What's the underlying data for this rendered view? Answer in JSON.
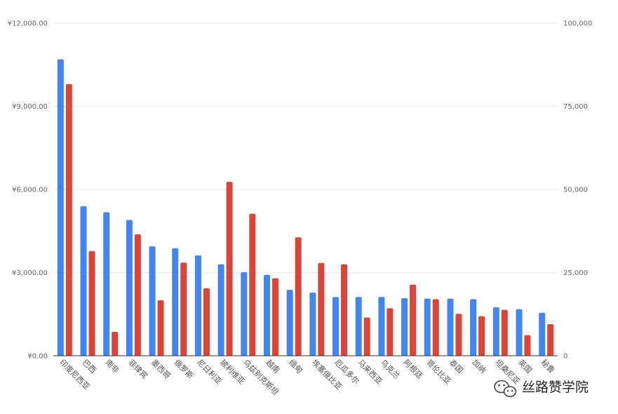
{
  "chart_data": {
    "type": "bar",
    "categories": [
      "印度尼西亚",
      "巴西",
      "南非",
      "菲律宾",
      "墨西哥",
      "俄罗斯",
      "尼日利亚",
      "玻利维亚",
      "乌兹别克斯坦",
      "越南",
      "缅甸",
      "埃塞俄比亚",
      "厄瓜多尔",
      "马来西亚",
      "乌克兰",
      "阿根廷",
      "哥伦比亚",
      "泰国",
      "加纳",
      "坦桑尼亚",
      "英国",
      "秘鲁"
    ],
    "left_axis": {
      "ticks": [
        "¥12,000.00",
        "¥9,000.00",
        "¥6,000.00",
        "¥3,000.00",
        "¥0.00"
      ],
      "ylim": [
        0,
        12000
      ]
    },
    "right_axis": {
      "ticks": [
        "100,000",
        "75,000",
        "50,000",
        "25,000",
        "0"
      ],
      "ylim": [
        0,
        100000
      ]
    },
    "series": [
      {
        "axis": "left",
        "color": "#4285F4",
        "values": [
          10700,
          5400,
          5180,
          4900,
          3950,
          3880,
          3620,
          3300,
          3020,
          2920,
          2380,
          2280,
          2120,
          2120,
          2120,
          2080,
          2060,
          2060,
          2040,
          1750,
          1680,
          1550
        ]
      },
      {
        "axis": "right",
        "color": "#DB4437",
        "values": [
          81700,
          31500,
          7200,
          36500,
          16700,
          28000,
          20300,
          52300,
          42700,
          23300,
          35600,
          27900,
          27500,
          11500,
          14300,
          21400,
          17000,
          12600,
          11900,
          13800,
          6200,
          9500
        ]
      }
    ],
    "grid": true,
    "legend": "none"
  },
  "watermark": {
    "icon": "wechat-icon",
    "text": "丝路赞学院"
  }
}
